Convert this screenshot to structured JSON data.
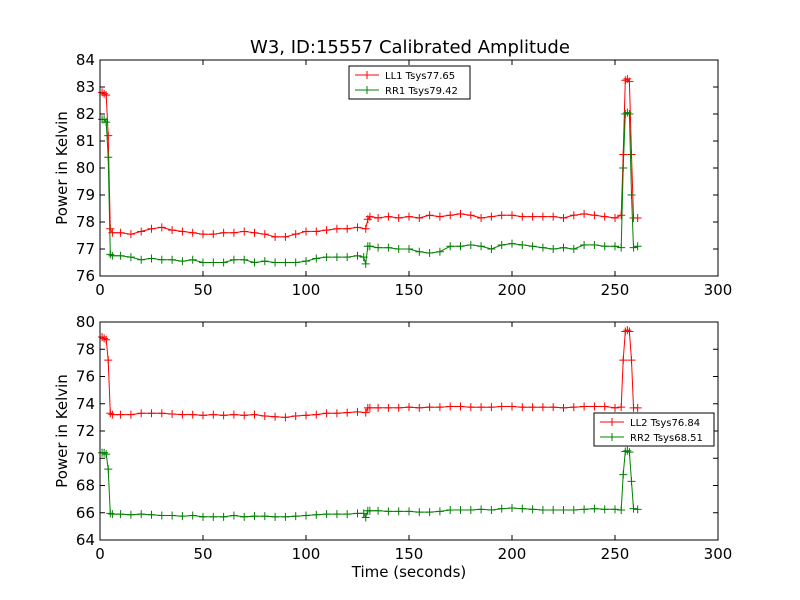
{
  "chart_data": [
    {
      "type": "line",
      "title": "W3, ID:15557 Calibrated Amplitude",
      "xlabel": "",
      "ylabel": "Power in Kelvin",
      "xlim": [
        0,
        300
      ],
      "ylim": [
        76,
        84
      ],
      "xticks": [
        "0",
        "50",
        "100",
        "150",
        "200",
        "250",
        "300"
      ],
      "yticks": [
        "76",
        "77",
        "78",
        "79",
        "80",
        "81",
        "82",
        "83",
        "84"
      ],
      "grid": false,
      "legend_position": "top-center",
      "series": [
        {
          "name": "LL1 Tsys77.65",
          "color": "#ff0000",
          "x": [
            1,
            2,
            3,
            4,
            5,
            6,
            10,
            15,
            20,
            25,
            30,
            35,
            40,
            45,
            50,
            55,
            60,
            65,
            70,
            75,
            80,
            85,
            90,
            95,
            100,
            105,
            110,
            115,
            120,
            125,
            129,
            130,
            131,
            135,
            140,
            145,
            150,
            155,
            160,
            165,
            170,
            175,
            180,
            185,
            190,
            195,
            200,
            205,
            210,
            215,
            220,
            225,
            230,
            235,
            240,
            245,
            250,
            253,
            254,
            255,
            256,
            257,
            258,
            259,
            261
          ],
          "y": [
            82.8,
            82.75,
            82.7,
            81.2,
            77.75,
            77.6,
            77.6,
            77.55,
            77.65,
            77.75,
            77.8,
            77.7,
            77.65,
            77.6,
            77.55,
            77.55,
            77.6,
            77.6,
            77.65,
            77.6,
            77.55,
            77.45,
            77.45,
            77.55,
            77.65,
            77.65,
            77.7,
            77.75,
            77.75,
            77.8,
            77.75,
            78.1,
            78.2,
            78.15,
            78.2,
            78.15,
            78.2,
            78.15,
            78.25,
            78.2,
            78.25,
            78.3,
            78.25,
            78.15,
            78.2,
            78.25,
            78.25,
            78.2,
            78.2,
            78.2,
            78.2,
            78.15,
            78.25,
            78.3,
            78.25,
            78.2,
            78.15,
            78.25,
            80.5,
            83.25,
            83.3,
            83.2,
            80.5,
            78.15,
            78.15
          ]
        },
        {
          "name": "RR1 Tsys79.42",
          "color": "#008000",
          "x": [
            1,
            2,
            3,
            4,
            5,
            6,
            10,
            15,
            20,
            25,
            30,
            35,
            40,
            45,
            50,
            55,
            60,
            65,
            70,
            75,
            80,
            85,
            90,
            95,
            100,
            105,
            110,
            115,
            120,
            125,
            128,
            129,
            130,
            131,
            135,
            140,
            145,
            150,
            155,
            160,
            165,
            170,
            175,
            180,
            185,
            190,
            195,
            200,
            205,
            210,
            215,
            220,
            225,
            230,
            235,
            240,
            245,
            250,
            253,
            254,
            255,
            256,
            257,
            258,
            259,
            261
          ],
          "y": [
            81.8,
            81.8,
            81.7,
            80.4,
            76.8,
            76.75,
            76.75,
            76.7,
            76.6,
            76.65,
            76.6,
            76.6,
            76.55,
            76.6,
            76.5,
            76.5,
            76.5,
            76.6,
            76.6,
            76.5,
            76.55,
            76.5,
            76.5,
            76.5,
            76.55,
            76.65,
            76.7,
            76.7,
            76.7,
            76.75,
            76.7,
            76.45,
            77.1,
            77.1,
            77.05,
            77.05,
            77.0,
            77.0,
            76.9,
            76.85,
            76.9,
            77.1,
            77.1,
            77.15,
            77.1,
            77.0,
            77.15,
            77.2,
            77.15,
            77.1,
            77.05,
            77.0,
            77.05,
            77.0,
            77.15,
            77.15,
            77.1,
            77.1,
            77.05,
            80.0,
            82.0,
            82.05,
            82.0,
            79.0,
            77.05,
            77.1
          ]
        }
      ]
    },
    {
      "type": "line",
      "title": "",
      "xlabel": "Time (seconds)",
      "ylabel": "Power in Kelvin",
      "xlim": [
        0,
        300
      ],
      "ylim": [
        64,
        80
      ],
      "xticks": [
        "0",
        "50",
        "100",
        "150",
        "200",
        "250",
        "300"
      ],
      "yticks": [
        "64",
        "66",
        "68",
        "70",
        "72",
        "74",
        "76",
        "78",
        "80"
      ],
      "grid": false,
      "legend_position": "center-right",
      "series": [
        {
          "name": "LL2 Tsys76.84",
          "color": "#ff0000",
          "x": [
            1,
            2,
            3,
            4,
            5,
            6,
            10,
            15,
            20,
            25,
            30,
            35,
            40,
            45,
            50,
            55,
            60,
            65,
            70,
            75,
            80,
            85,
            90,
            95,
            100,
            105,
            110,
            115,
            120,
            125,
            129,
            130,
            131,
            135,
            140,
            145,
            150,
            155,
            160,
            165,
            170,
            175,
            180,
            185,
            190,
            195,
            200,
            205,
            210,
            215,
            220,
            225,
            230,
            235,
            240,
            245,
            250,
            253,
            254,
            255,
            256,
            257,
            258,
            259,
            261
          ],
          "y": [
            78.9,
            78.8,
            78.7,
            77.2,
            73.3,
            73.2,
            73.2,
            73.2,
            73.3,
            73.3,
            73.3,
            73.25,
            73.2,
            73.2,
            73.15,
            73.2,
            73.15,
            73.2,
            73.15,
            73.2,
            73.1,
            73.05,
            73.0,
            73.1,
            73.15,
            73.2,
            73.3,
            73.3,
            73.35,
            73.4,
            73.35,
            73.7,
            73.7,
            73.7,
            73.7,
            73.7,
            73.75,
            73.7,
            73.75,
            73.75,
            73.8,
            73.8,
            73.75,
            73.75,
            73.75,
            73.8,
            73.8,
            73.75,
            73.75,
            73.75,
            73.75,
            73.7,
            73.75,
            73.8,
            73.8,
            73.8,
            73.7,
            73.75,
            77.2,
            79.3,
            79.4,
            79.3,
            77.2,
            73.7,
            73.7
          ]
        },
        {
          "name": "RR2 Tsys68.51",
          "color": "#008000",
          "x": [
            1,
            2,
            3,
            4,
            5,
            6,
            10,
            15,
            20,
            25,
            30,
            35,
            40,
            45,
            50,
            55,
            60,
            65,
            70,
            75,
            80,
            85,
            90,
            95,
            100,
            105,
            110,
            115,
            120,
            125,
            128,
            129,
            130,
            131,
            135,
            140,
            145,
            150,
            155,
            160,
            165,
            170,
            175,
            180,
            185,
            190,
            195,
            200,
            205,
            210,
            215,
            220,
            225,
            230,
            235,
            240,
            245,
            250,
            253,
            254,
            255,
            256,
            257,
            258,
            259,
            261
          ],
          "y": [
            70.4,
            70.4,
            70.3,
            69.2,
            65.95,
            65.9,
            65.9,
            65.85,
            65.9,
            65.85,
            65.8,
            65.8,
            65.75,
            65.8,
            65.7,
            65.7,
            65.7,
            65.8,
            65.7,
            65.75,
            65.75,
            65.7,
            65.7,
            65.75,
            65.8,
            65.85,
            65.9,
            65.9,
            65.9,
            65.95,
            65.95,
            65.65,
            66.15,
            66.15,
            66.15,
            66.1,
            66.1,
            66.1,
            66.05,
            66.05,
            66.1,
            66.2,
            66.2,
            66.2,
            66.25,
            66.2,
            66.3,
            66.35,
            66.3,
            66.25,
            66.2,
            66.2,
            66.2,
            66.2,
            66.25,
            66.3,
            66.25,
            66.25,
            66.2,
            68.8,
            70.5,
            70.55,
            70.45,
            68.3,
            66.3,
            66.25
          ]
        }
      ]
    }
  ]
}
